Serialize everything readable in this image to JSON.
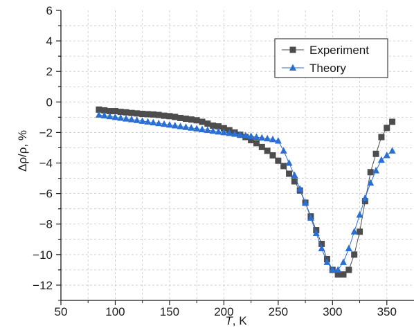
{
  "chart_data": {
    "type": "scatter",
    "xlabel_italic": "T",
    "xlabel_rest": ", K",
    "ylabel": "Δρ/ρ, %",
    "xlim": [
      50,
      375
    ],
    "ylim": [
      -13,
      6
    ],
    "xticks": [
      50,
      100,
      150,
      200,
      250,
      300,
      350
    ],
    "yticks": [
      6,
      4,
      2,
      0,
      -2,
      -4,
      -6,
      -8,
      -10,
      -12
    ],
    "xtick_labels": [
      "50",
      "100",
      "150",
      "200",
      "250",
      "300",
      "350"
    ],
    "ytick_labels": [
      "6",
      "4",
      "2",
      "0",
      "−2",
      "−4",
      "−6",
      "−8",
      "−10",
      "−12"
    ],
    "grid": true,
    "legend_position": "top-right",
    "series": [
      {
        "name": "Experiment",
        "color": "#4d4d4d",
        "marker": "square",
        "points": [
          [
            85,
            -0.5
          ],
          [
            90,
            -0.55
          ],
          [
            95,
            -0.6
          ],
          [
            100,
            -0.6
          ],
          [
            105,
            -0.65
          ],
          [
            110,
            -0.68
          ],
          [
            115,
            -0.72
          ],
          [
            120,
            -0.75
          ],
          [
            125,
            -0.78
          ],
          [
            130,
            -0.8
          ],
          [
            135,
            -0.82
          ],
          [
            140,
            -0.85
          ],
          [
            145,
            -0.9
          ],
          [
            150,
            -0.93
          ],
          [
            155,
            -0.98
          ],
          [
            160,
            -1.05
          ],
          [
            165,
            -1.1
          ],
          [
            170,
            -1.15
          ],
          [
            175,
            -1.2
          ],
          [
            180,
            -1.3
          ],
          [
            185,
            -1.42
          ],
          [
            190,
            -1.55
          ],
          [
            195,
            -1.6
          ],
          [
            200,
            -1.72
          ],
          [
            205,
            -1.85
          ],
          [
            210,
            -2.0
          ],
          [
            215,
            -2.15
          ],
          [
            220,
            -2.3
          ],
          [
            225,
            -2.5
          ],
          [
            230,
            -2.7
          ],
          [
            235,
            -2.95
          ],
          [
            240,
            -3.2
          ],
          [
            245,
            -3.5
          ],
          [
            250,
            -3.85
          ],
          [
            255,
            -4.2
          ],
          [
            260,
            -4.7
          ],
          [
            265,
            -5.2
          ],
          [
            270,
            -5.8
          ],
          [
            275,
            -6.6
          ],
          [
            280,
            -7.5
          ],
          [
            285,
            -8.4
          ],
          [
            290,
            -9.3
          ],
          [
            295,
            -10.3
          ],
          [
            300,
            -11.0
          ],
          [
            305,
            -11.3
          ],
          [
            310,
            -11.3
          ],
          [
            315,
            -11.0
          ],
          [
            320,
            -10.0
          ],
          [
            325,
            -8.5
          ],
          [
            330,
            -6.5
          ],
          [
            335,
            -4.6
          ],
          [
            340,
            -3.4
          ],
          [
            345,
            -2.3
          ],
          [
            350,
            -1.7
          ],
          [
            355,
            -1.3
          ]
        ]
      },
      {
        "name": "Theory",
        "color": "#2a6fd4",
        "marker": "triangle",
        "points": [
          [
            85,
            -0.85
          ],
          [
            90,
            -0.9
          ],
          [
            95,
            -0.95
          ],
          [
            100,
            -1.0
          ],
          [
            105,
            -1.05
          ],
          [
            110,
            -1.1
          ],
          [
            115,
            -1.15
          ],
          [
            120,
            -1.2
          ],
          [
            125,
            -1.25
          ],
          [
            130,
            -1.3
          ],
          [
            135,
            -1.35
          ],
          [
            140,
            -1.4
          ],
          [
            145,
            -1.45
          ],
          [
            150,
            -1.5
          ],
          [
            155,
            -1.55
          ],
          [
            160,
            -1.6
          ],
          [
            165,
            -1.65
          ],
          [
            170,
            -1.7
          ],
          [
            175,
            -1.75
          ],
          [
            180,
            -1.8
          ],
          [
            185,
            -1.85
          ],
          [
            190,
            -1.9
          ],
          [
            195,
            -1.95
          ],
          [
            200,
            -2.0
          ],
          [
            205,
            -2.05
          ],
          [
            210,
            -2.1
          ],
          [
            215,
            -2.15
          ],
          [
            220,
            -2.2
          ],
          [
            225,
            -2.25
          ],
          [
            230,
            -2.3
          ],
          [
            235,
            -2.35
          ],
          [
            240,
            -2.4
          ],
          [
            245,
            -2.45
          ],
          [
            250,
            -2.55
          ],
          [
            255,
            -3.2
          ],
          [
            260,
            -4.0
          ],
          [
            265,
            -4.8
          ],
          [
            270,
            -5.7
          ],
          [
            275,
            -6.6
          ],
          [
            280,
            -7.6
          ],
          [
            285,
            -8.6
          ],
          [
            290,
            -9.6
          ],
          [
            295,
            -10.5
          ],
          [
            300,
            -11.0
          ],
          [
            305,
            -11.0
          ],
          [
            310,
            -10.5
          ],
          [
            315,
            -9.6
          ],
          [
            320,
            -8.5
          ],
          [
            325,
            -7.4
          ],
          [
            330,
            -6.3
          ],
          [
            335,
            -5.3
          ],
          [
            340,
            -4.5
          ],
          [
            345,
            -3.8
          ],
          [
            350,
            -3.5
          ],
          [
            355,
            -3.2
          ]
        ]
      }
    ]
  }
}
